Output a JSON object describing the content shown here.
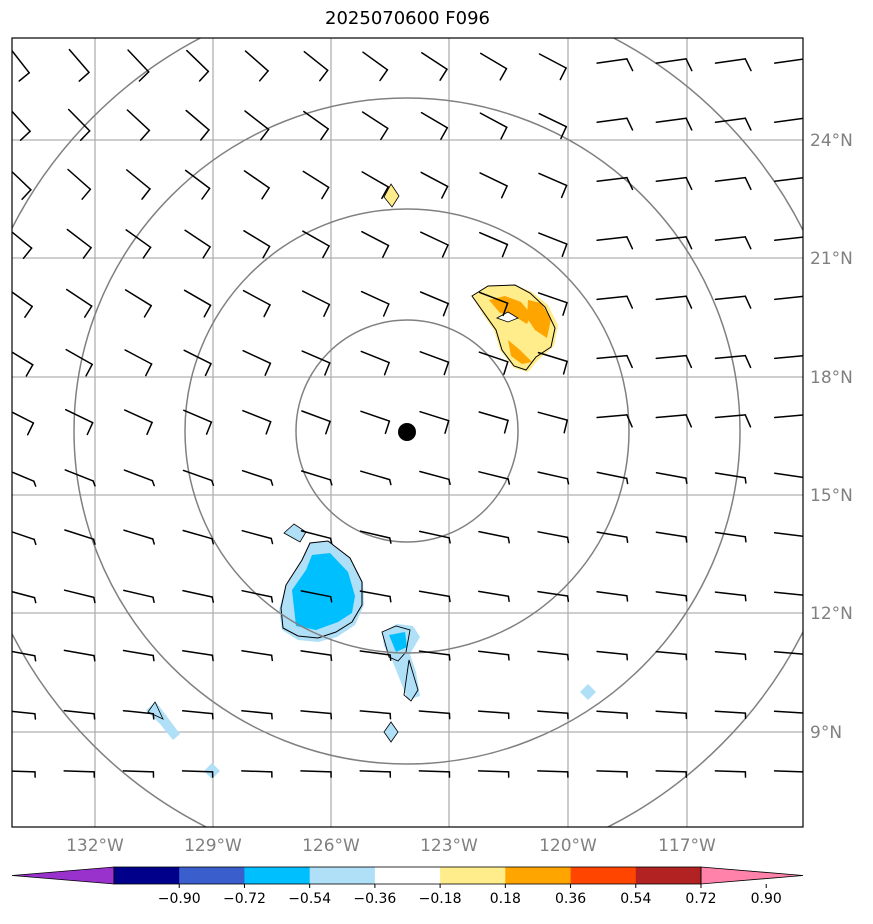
{
  "title": "2025070600 F096",
  "map": {
    "lon_labels": [
      "132°W",
      "129°W",
      "126°W",
      "123°W",
      "120°W",
      "117°W"
    ],
    "lat_labels": [
      "24°N",
      "21°N",
      "18°N",
      "15°N",
      "12°N",
      "9°N"
    ],
    "center_marker": "storm-center-dot",
    "range_rings": 4
  },
  "colorbar": {
    "ticks": [
      "−0.90",
      "−0.72",
      "−0.54",
      "−0.36",
      "−0.18",
      "0.18",
      "0.36",
      "0.54",
      "0.72",
      "0.90"
    ],
    "colors": [
      "#9932cc",
      "#00008b",
      "#3a5fcd",
      "#00bfff",
      "#b0e0f8",
      "#ffffff",
      "#ffec8b",
      "#ffa500",
      "#ff4500",
      "#b22222",
      "#ff82ab"
    ]
  },
  "contour_colors": {
    "light_blue": "#b0e0f8",
    "blue": "#00bfff",
    "light_yellow": "#ffec8b",
    "orange": "#ffa500"
  }
}
